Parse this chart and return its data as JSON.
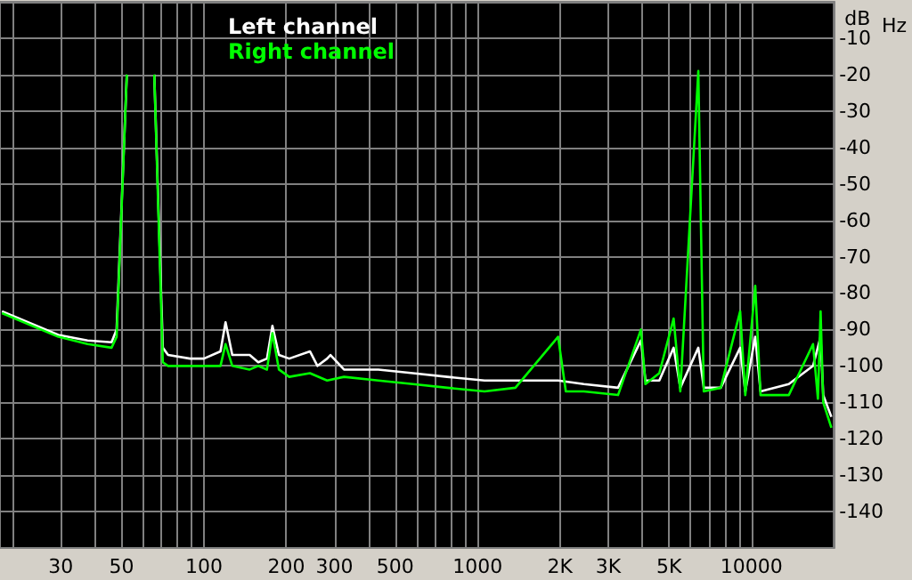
{
  "chart_data": {
    "type": "line",
    "xlabel": "Hz",
    "ylabel": "dB",
    "log": "x",
    "grid": true,
    "legend": "top left",
    "marker": "none",
    "line_style": "solid",
    "xlim": [
      18,
      20000
    ],
    "ylim": [
      -150,
      0
    ],
    "xticks": [
      {
        "value": 20,
        "label": null
      },
      30,
      {
        "value": 40,
        "label": null
      },
      50,
      {
        "value": 60,
        "label": null
      },
      {
        "value": 70,
        "label": null
      },
      {
        "value": 80,
        "label": null
      },
      {
        "value": 90,
        "label": null
      },
      100,
      200,
      300,
      {
        "value": 400,
        "label": null
      },
      500,
      {
        "value": 600,
        "label": null
      },
      {
        "value": 700,
        "label": null
      },
      {
        "value": 800,
        "label": null
      },
      {
        "value": 900,
        "label": null
      },
      1000,
      {
        "value": 2000,
        "label": "2K"
      },
      {
        "value": 3000,
        "label": "3K"
      },
      {
        "value": 4000,
        "label": null
      },
      {
        "value": 5000,
        "label": "5K"
      },
      {
        "value": 6000,
        "label": null
      },
      {
        "value": 7000,
        "label": null
      },
      {
        "value": 8000,
        "label": null
      },
      {
        "value": 9000,
        "label": null
      },
      10000,
      {
        "value": 20000,
        "label": null
      }
    ],
    "yticks": [
      -140,
      -130,
      -120,
      -110,
      -100,
      -90,
      -80,
      -70,
      -60,
      -50,
      -40,
      -30,
      -20,
      -10
    ],
    "series": [
      {
        "name": "Left channel",
        "color": "#ffffff",
        "x": [
          18.3,
          29.4,
          37.6,
          46,
          48,
          52.3,
          59,
          65.9,
          70.8,
          74,
          89,
          100,
          115,
          120,
          127,
          147,
          158,
          170,
          178,
          188,
          205,
          244,
          260,
          282,
          290,
          325,
          434,
          580,
          774,
          1060,
          1374,
          1968,
          2443,
          3258,
          3950,
          4103,
          4610,
          5200,
          5500,
          6400,
          6700,
          7730,
          9100,
          9500,
          10330,
          10800,
          13700,
          16800,
          17900,
          18300,
          19600
        ],
        "values": [
          -85,
          -91.5,
          -93,
          -93.5,
          -90,
          -20,
          null,
          -20,
          -95,
          -97,
          -98,
          -98,
          -96,
          -88,
          -97,
          -97,
          -99,
          -98,
          -89,
          -97,
          -98,
          -96,
          -100,
          -98,
          -97,
          -101,
          -101,
          -102,
          -103,
          -104,
          -104,
          -104,
          -105,
          -106,
          -93,
          -104,
          -104,
          -95,
          -106,
          -95,
          -106,
          -106,
          -95,
          -107,
          -92,
          -107,
          -105,
          -100,
          -92,
          -108,
          -114
        ]
      },
      {
        "name": "Right channel",
        "color": "#00ff00",
        "x": [
          18.3,
          29.4,
          37.6,
          46,
          48,
          52.3,
          59,
          65.9,
          70.8,
          74,
          89,
          100,
          115,
          120,
          127,
          147,
          158,
          170,
          178,
          188,
          205,
          244,
          282,
          325,
          434,
          580,
          774,
          1060,
          1374,
          1968,
          2100,
          2443,
          3258,
          3950,
          4103,
          4610,
          5200,
          5500,
          6400,
          6700,
          7730,
          9100,
          9500,
          10330,
          10800,
          13700,
          16800,
          17500,
          17900,
          18300,
          19600
        ],
        "values": [
          -85.5,
          -92,
          -94,
          -95,
          -92,
          -20,
          null,
          -20,
          -99,
          -100,
          -100,
          -100,
          -100,
          -94,
          -100,
          -101,
          -100,
          -101,
          -91,
          -101,
          -103,
          -102,
          -104,
          -103,
          -104,
          -105,
          -106,
          -107,
          -106,
          -92,
          -107,
          -107,
          -108,
          -90,
          -105,
          -102,
          -87,
          -107,
          -19,
          -107,
          -106,
          -85,
          -108,
          -78,
          -108,
          -108,
          -94,
          -109,
          -85,
          -110,
          -117
        ]
      }
    ]
  }
}
